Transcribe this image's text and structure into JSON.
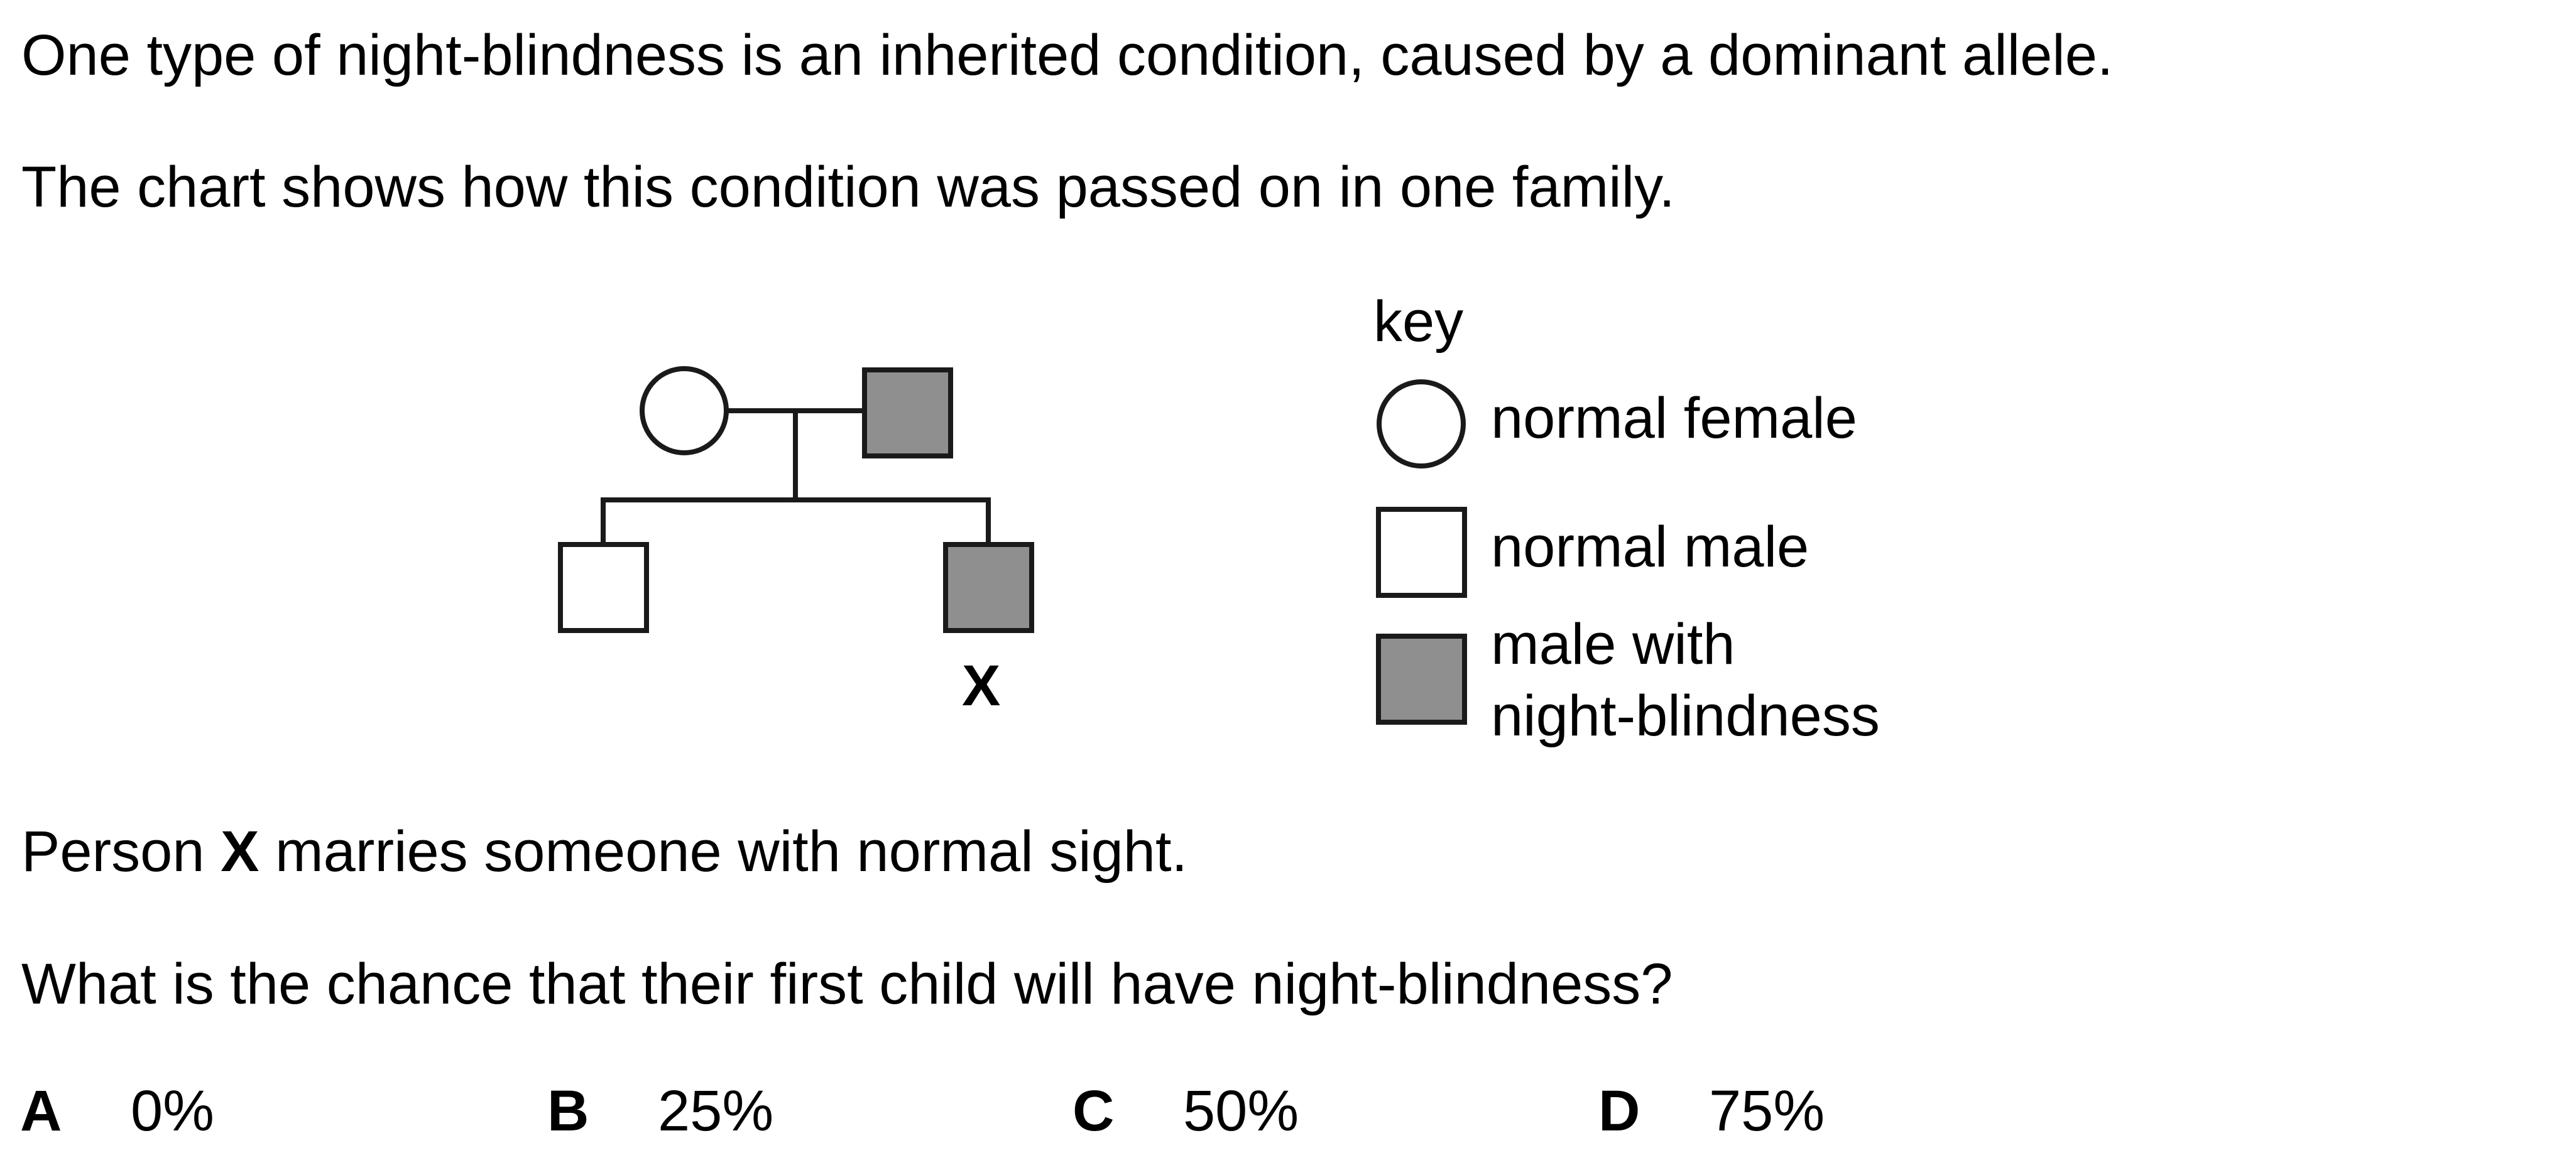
{
  "question": {
    "intro_line_1": "One type of night-blindness is an inherited condition, caused by a dominant allele.",
    "intro_line_2": "The chart shows how this condition was passed on in one family.",
    "person_prefix": "Person ",
    "person_label": "X",
    "person_suffix": " marries someone with normal sight.",
    "question_text": "What is the chance that their first child will have night-blindness?"
  },
  "pedigree": {
    "marked_child_label": "X",
    "fill_affected": "#8f8f8f",
    "stroke": "#1a1a1a"
  },
  "key": {
    "title": "key",
    "items": [
      {
        "symbol": "circle",
        "fill": "#ffffff",
        "label": "normal female"
      },
      {
        "symbol": "square",
        "fill": "#ffffff",
        "label": "normal male"
      },
      {
        "symbol": "square",
        "fill": "#8f8f8f",
        "label_line_1": "male with",
        "label_line_2": "night-blindness"
      }
    ]
  },
  "options": [
    {
      "letter": "A",
      "value": "0%"
    },
    {
      "letter": "B",
      "value": "25%"
    },
    {
      "letter": "C",
      "value": "50%"
    },
    {
      "letter": "D",
      "value": "75%"
    }
  ]
}
